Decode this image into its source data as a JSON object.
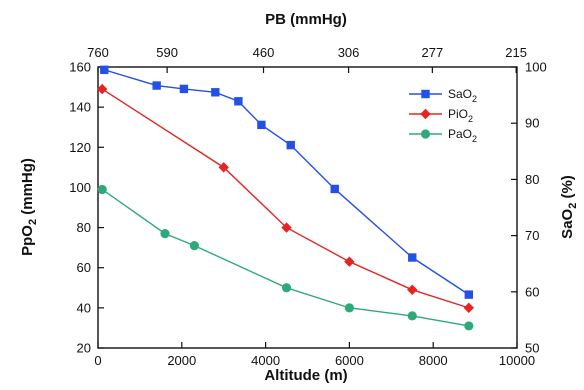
{
  "chart_data": {
    "type": "line",
    "title": "",
    "xlabel": "Altitude (m)",
    "x2label": "PB (mmHg)",
    "ylabel": "PpO2 (mmHg)",
    "y2label": "SaO2 (%)",
    "xlim": [
      0,
      10000
    ],
    "ylim": [
      20,
      160
    ],
    "y2lim": [
      50,
      100
    ],
    "xticks": [
      0,
      2000,
      4000,
      6000,
      8000,
      10000
    ],
    "yticks": [
      20,
      40,
      60,
      80,
      100,
      120,
      140,
      160
    ],
    "y2ticks": [
      50,
      60,
      70,
      80,
      90,
      100
    ],
    "top_ticks": [
      {
        "x": 0,
        "label": "760"
      },
      {
        "x": 1650,
        "label": "590"
      },
      {
        "x": 3950,
        "label": "460"
      },
      {
        "x": 5980,
        "label": "306"
      },
      {
        "x": 7980,
        "label": "277"
      },
      {
        "x": 9980,
        "label": "215"
      }
    ],
    "grid": false,
    "legend_position": "top-right",
    "series": [
      {
        "name": "SaO2",
        "legend_main": "SaO",
        "legend_sub": "2",
        "axis": "right",
        "color": "#2450e6",
        "marker": "square",
        "x": [
          150,
          1400,
          2050,
          2800,
          3350,
          3900,
          4600,
          5650,
          7500,
          8850
        ],
        "y": [
          99.5,
          96.7,
          96.1,
          95.5,
          93.9,
          89.7,
          86.1,
          78.3,
          66.1,
          59.5
        ]
      },
      {
        "name": "PiO2",
        "legend_main": "PiO",
        "legend_sub": "2",
        "axis": "left",
        "color": "#e62424",
        "marker": "diamond",
        "x": [
          100,
          3000,
          4500,
          6000,
          7500,
          8850
        ],
        "y": [
          149,
          110,
          80,
          63,
          49,
          40
        ]
      },
      {
        "name": "PaO2",
        "legend_main": "PaO",
        "legend_sub": "2",
        "axis": "left",
        "color": "#2eaa7a",
        "marker": "circle",
        "x": [
          100,
          1600,
          2300,
          4500,
          6000,
          7500,
          8850
        ],
        "y": [
          99,
          77,
          71,
          50,
          40,
          36,
          31
        ]
      }
    ]
  }
}
